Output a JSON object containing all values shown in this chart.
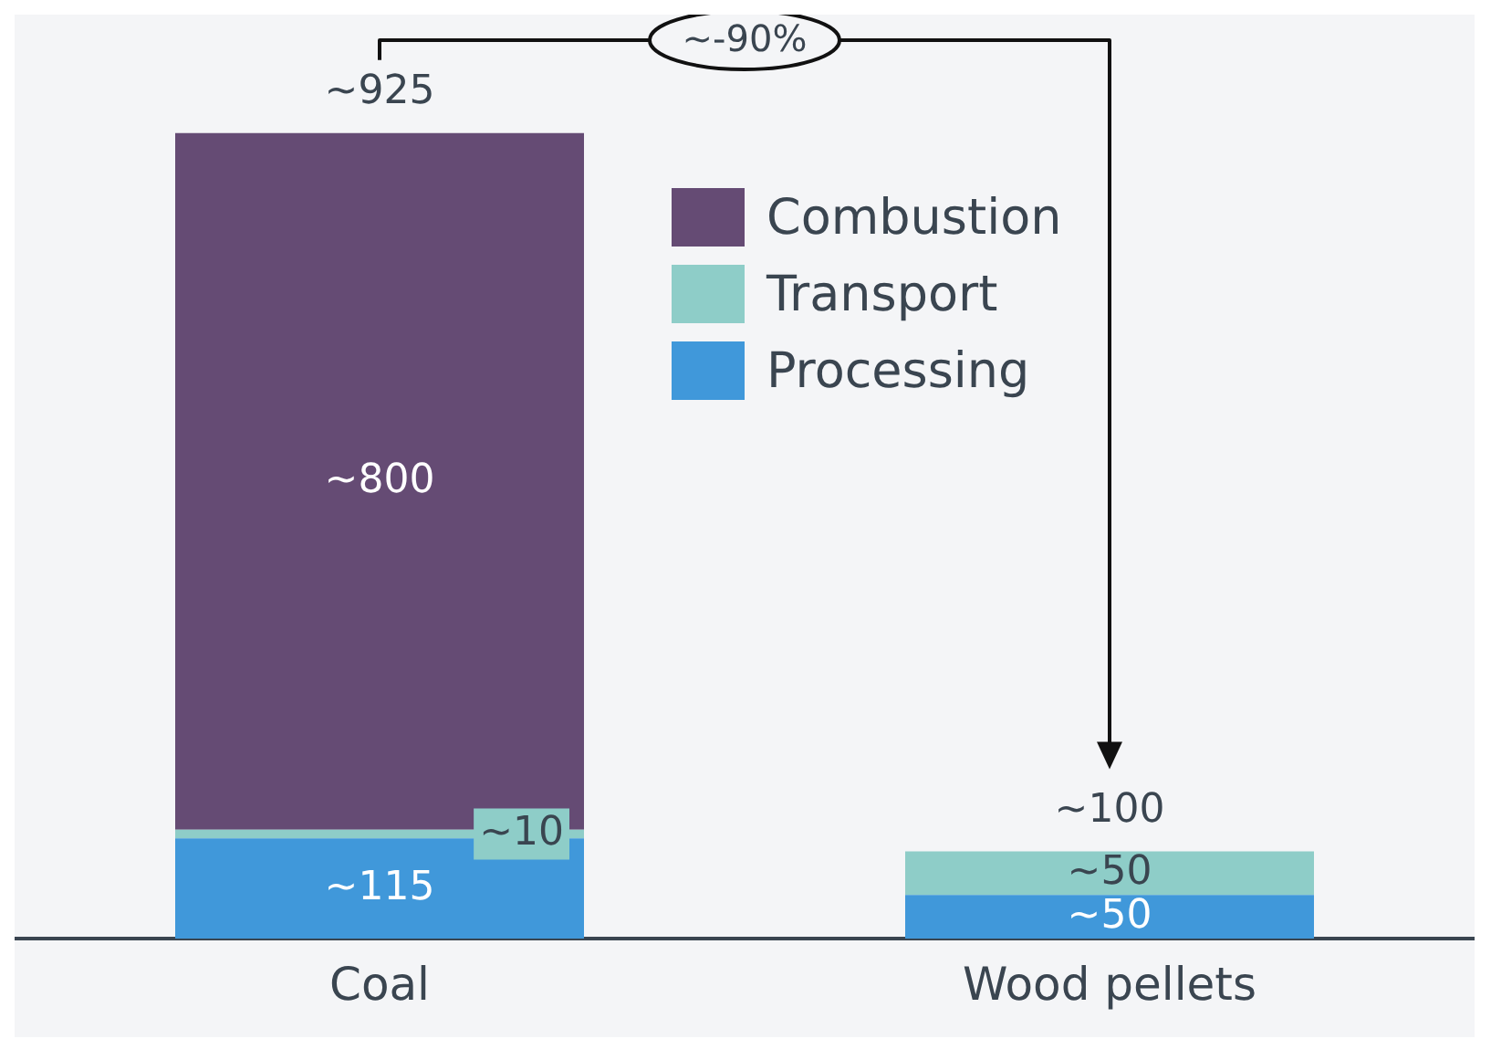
{
  "chart_data": {
    "type": "bar",
    "stacked": true,
    "categories": [
      "Coal",
      "Wood pellets"
    ],
    "series": [
      {
        "name": "Processing",
        "color": "#4098da",
        "values": [
          115,
          50
        ],
        "value_labels": [
          "~115",
          "~50"
        ]
      },
      {
        "name": "Transport",
        "color": "#8ecdc8",
        "values": [
          10,
          50
        ],
        "value_labels": [
          "~10",
          "~50"
        ]
      },
      {
        "name": "Combustion",
        "color": "#654b74",
        "values": [
          800,
          0
        ],
        "value_labels": [
          "~800",
          null
        ]
      }
    ],
    "totals": [
      "~925",
      "~100"
    ],
    "annotations": [
      "~-90%"
    ],
    "legend": "top",
    "grid": false
  }
}
